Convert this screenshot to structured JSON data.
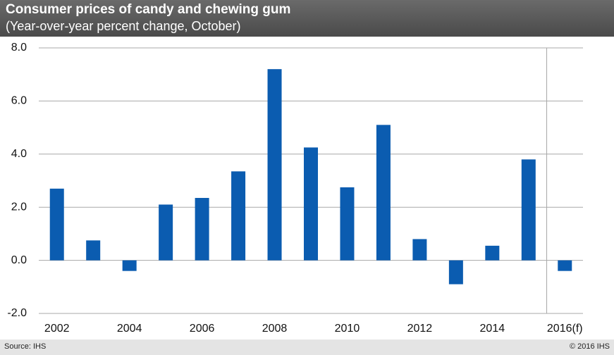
{
  "chart_data": {
    "type": "bar",
    "title": "Consumer prices of candy and chewing gum",
    "subtitle": "(Year-over-year  percent change, October)",
    "categories": [
      "2002",
      null,
      "2004",
      null,
      "2006",
      null,
      "2008",
      null,
      "2010",
      null,
      "2012",
      null,
      "2014",
      null,
      "2016(f)"
    ],
    "values": [
      2.7,
      0.75,
      -0.4,
      2.1,
      2.35,
      3.35,
      7.2,
      4.25,
      2.75,
      5.1,
      0.8,
      -0.9,
      0.55,
      3.8,
      -0.4
    ],
    "color": "#0b5cb0",
    "ylim": [
      -2,
      8
    ],
    "yticks": [
      {
        "value": -2,
        "label": "-2.0"
      },
      {
        "value": 0,
        "label": "0.0"
      },
      {
        "value": 2,
        "label": "2.0"
      },
      {
        "value": 4,
        "label": "4.0"
      },
      {
        "value": 6,
        "label": "6.0"
      },
      {
        "value": 8,
        "label": "8.0"
      }
    ],
    "grid": true,
    "source": "Source: IHS",
    "copyright": "© 2016 IHS"
  }
}
